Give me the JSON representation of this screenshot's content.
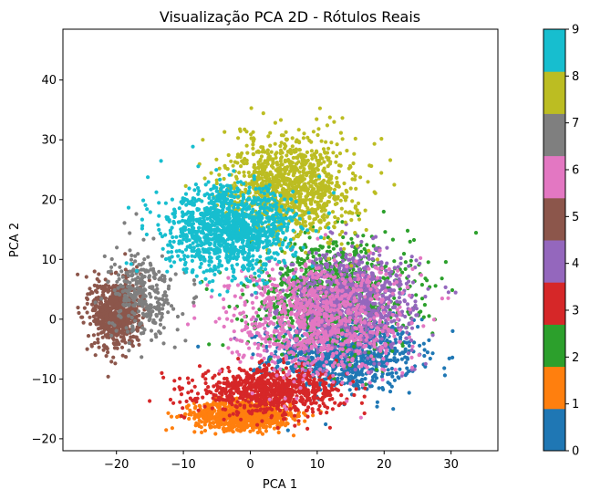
{
  "chart_data": {
    "type": "scatter",
    "title": "Visualização PCA 2D - Rótulos Reais",
    "xlabel": "PCA 1",
    "ylabel": "PCA 2",
    "xlim": [
      -28,
      37
    ],
    "ylim": [
      -22,
      48.5
    ],
    "xticks": [
      -20,
      -10,
      0,
      10,
      20,
      30
    ],
    "yticks": [
      -20,
      -10,
      0,
      10,
      20,
      30,
      40
    ],
    "grid": false,
    "colormap": "tab10",
    "colorbar": {
      "range": [
        0,
        9
      ],
      "ticks": [
        0,
        1,
        2,
        3,
        4,
        5,
        6,
        7,
        8,
        9
      ],
      "colors": [
        "#1f77b4",
        "#ff7f0e",
        "#2ca02c",
        "#d62728",
        "#9467bd",
        "#8c564b",
        "#e377c2",
        "#7f7f7f",
        "#bcbd22",
        "#17becf"
      ]
    },
    "classes": [
      {
        "label": 0,
        "color": "#1f77b4",
        "center": [
          14,
          -6
        ],
        "spread": [
          9,
          5
        ],
        "count": 900
      },
      {
        "label": 1,
        "color": "#ff7f0e",
        "center": [
          -1,
          -16
        ],
        "spread": [
          6,
          2
        ],
        "count": 900
      },
      {
        "label": 2,
        "color": "#2ca02c",
        "center": [
          12,
          4
        ],
        "spread": [
          10,
          8
        ],
        "count": 1000
      },
      {
        "label": 3,
        "color": "#d62728",
        "center": [
          3,
          -12
        ],
        "spread": [
          9,
          3
        ],
        "count": 800
      },
      {
        "label": 4,
        "color": "#9467bd",
        "center": [
          15,
          3
        ],
        "spread": [
          8,
          7
        ],
        "count": 900
      },
      {
        "label": 5,
        "color": "#8c564b",
        "center": [
          -20,
          1
        ],
        "spread": [
          3,
          5
        ],
        "count": 700
      },
      {
        "label": 6,
        "color": "#e377c2",
        "center": [
          10,
          0
        ],
        "spread": [
          11,
          8
        ],
        "count": 900
      },
      {
        "label": 7,
        "color": "#7f7f7f",
        "center": [
          -16,
          4
        ],
        "spread": [
          4,
          6
        ],
        "count": 300
      },
      {
        "label": 8,
        "color": "#bcbd22",
        "center": [
          6,
          22
        ],
        "spread": [
          8,
          7
        ],
        "count": 1100
      },
      {
        "label": 9,
        "color": "#17becf",
        "center": [
          -3,
          15
        ],
        "spread": [
          8,
          6
        ],
        "count": 1200
      }
    ]
  }
}
